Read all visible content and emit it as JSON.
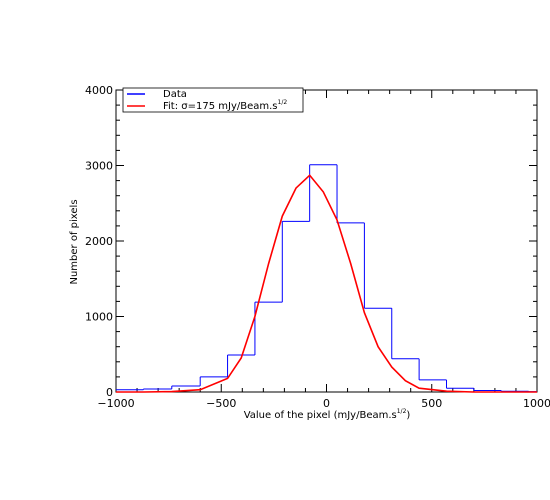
{
  "chart_data": {
    "type": "histogram",
    "xlabel": "Value of the pixel (mJy/Beam.s",
    "xlabel_superscript": "1/2",
    "xlabel_close": ")",
    "ylabel": "Number of pixels",
    "xlim": [
      -1000,
      1000
    ],
    "ylim": [
      0,
      4000
    ],
    "x_ticks": [
      -1000,
      -500,
      0,
      500,
      1000
    ],
    "x_tick_labels": [
      "−1000",
      "−500",
      "0",
      "500",
      "1000"
    ],
    "y_ticks": [
      0,
      1000,
      2000,
      3000,
      4000
    ],
    "y_tick_labels": [
      "0",
      "1000",
      "2000",
      "3000",
      "4000"
    ],
    "legend_placement": "top-left",
    "series": [
      {
        "name": "Data",
        "style": "step",
        "color": "#0000ff",
        "bin_edges": [
          -1000,
          -870,
          -735,
          -600,
          -470,
          -340,
          -210,
          -80,
          50,
          180,
          310,
          440,
          570,
          700,
          830,
          960,
          1000
        ],
        "counts": [
          30,
          40,
          80,
          200,
          490,
          1190,
          2260,
          3010,
          2240,
          1110,
          440,
          160,
          50,
          20,
          10,
          5
        ]
      },
      {
        "name": "Fit: σ=175 mJy/Beam.s",
        "name_superscript": "1/2",
        "style": "line",
        "color": "#ff0000",
        "x": [
          -1000,
          -870,
          -735,
          -600,
          -470,
          -405,
          -340,
          -275,
          -210,
          -145,
          -80,
          -15,
          50,
          115,
          180,
          245,
          310,
          375,
          440,
          570,
          700,
          830,
          1000
        ],
        "y": [
          0,
          0,
          5,
          30,
          180,
          450,
          1000,
          1700,
          2330,
          2700,
          2870,
          2650,
          2280,
          1700,
          1050,
          600,
          330,
          150,
          50,
          10,
          0,
          0,
          0
        ]
      }
    ]
  }
}
